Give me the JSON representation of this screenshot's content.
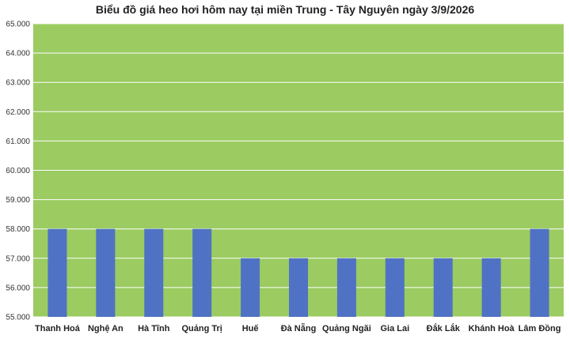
{
  "chart_data": {
    "type": "bar",
    "title": "Biểu đồ giá heo hơi hôm nay tại miền Trung - Tây Nguyên ngày 3/9/2026",
    "categories": [
      "Thanh Hoá",
      "Nghệ An",
      "Hà Tĩnh",
      "Quảng Trị",
      "Huế",
      "Đà Nẵng",
      "Quảng Ngãi",
      "Gia Lai",
      "Đắk Lắk",
      "Khánh Hoà",
      "Lâm Đồng"
    ],
    "values": [
      58000,
      58000,
      58000,
      58000,
      57000,
      57000,
      57000,
      57000,
      57000,
      57000,
      58000
    ],
    "ylim": [
      55000,
      65000
    ],
    "yticks": [
      "55.000",
      "56.000",
      "57.000",
      "58.000",
      "59.000",
      "60.000",
      "61.000",
      "62.000",
      "63.000",
      "64.000",
      "65.000"
    ],
    "xlabel": "",
    "ylabel": "",
    "grid": true,
    "colors": {
      "plot_background": "#9BCB61",
      "bar": "#4F72C4",
      "grid": "#ffffff"
    }
  }
}
